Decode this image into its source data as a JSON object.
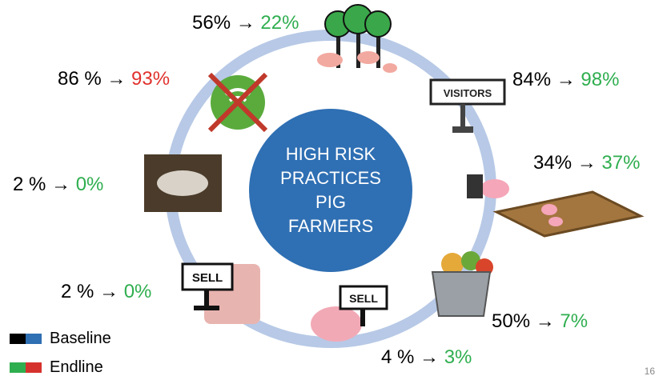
{
  "arrow": "→",
  "items": [
    {
      "baseline": "56%",
      "endline": "22%",
      "color": "#2fae4f"
    },
    {
      "baseline": "86 %",
      "endline": "93%",
      "color": "#e0322d"
    },
    {
      "baseline": "84%",
      "endline": "98%",
      "color": "#2fae4f"
    },
    {
      "baseline": "34%",
      "endline": "37%",
      "color": "#2fae4f"
    },
    {
      "baseline": "2 %",
      "endline": "0%",
      "color": "#2fae4f"
    },
    {
      "baseline": "2 %",
      "endline": "0%",
      "color": "#2fae4f"
    },
    {
      "baseline": "50%",
      "endline": "7%",
      "color": "#2fae4f"
    },
    {
      "baseline": "4 %",
      "endline": "3%",
      "color": "#2fae4f"
    }
  ],
  "center": {
    "lines": [
      "HIGH RISK",
      "PRACTICES",
      "PIG",
      "FARMERS"
    ]
  },
  "signs": {
    "visitors": "VISITORS",
    "sell_meat": "SELL",
    "sell_pig": "SELL"
  },
  "legend": [
    "Baseline",
    "Endline"
  ],
  "page_number": "16"
}
